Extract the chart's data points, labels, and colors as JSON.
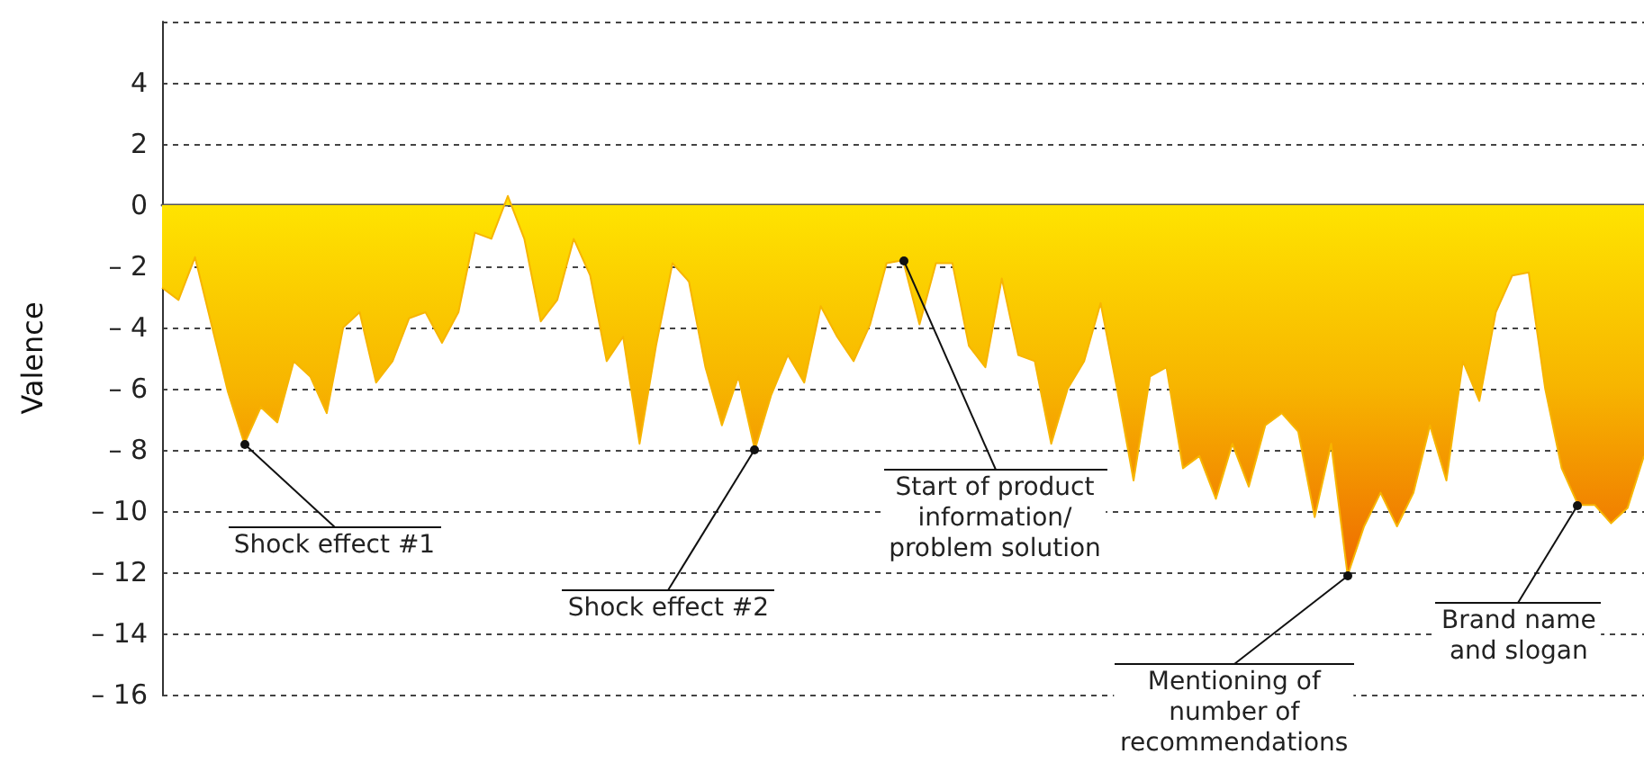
{
  "chart_data": {
    "type": "area",
    "ylabel": "Valence",
    "categories": [
      null,
      null,
      null,
      null,
      null,
      null,
      null,
      null,
      null,
      null,
      null,
      null,
      null,
      null,
      null,
      null,
      null,
      null,
      null,
      null,
      null,
      null,
      null,
      null,
      null,
      null,
      null,
      null,
      null,
      null,
      null,
      null,
      null,
      null,
      null,
      null,
      null,
      null,
      null,
      null,
      null,
      null,
      null,
      null,
      null,
      null,
      null,
      null,
      null,
      null,
      null,
      null,
      null,
      null,
      null,
      null,
      null,
      null,
      null,
      null,
      null,
      null,
      null,
      null,
      null,
      null,
      null,
      null,
      null,
      null,
      null,
      null,
      null,
      null,
      null,
      null,
      null,
      null,
      null,
      null,
      null,
      null,
      null,
      null,
      null,
      null,
      null,
      null,
      null,
      null,
      null
    ],
    "ylim": [
      -16,
      6
    ],
    "yticks": [
      {
        "value": 6,
        "label": null
      },
      4,
      2,
      0,
      {
        "value": -2,
        "label": "– 2"
      },
      {
        "value": -4,
        "label": "– 4"
      },
      {
        "value": -6,
        "label": "– 6"
      },
      {
        "value": -8,
        "label": "– 8"
      },
      {
        "value": -10,
        "label": "– 10"
      },
      {
        "value": -12,
        "label": "– 12"
      },
      {
        "value": -14,
        "label": "– 14"
      },
      {
        "value": -16,
        "label": "– 16"
      }
    ],
    "tick_labels": "y",
    "grid": "y",
    "marker": "none",
    "series": [
      {
        "color": "#f7b500",
        "values": [
          -2.7,
          -3.1,
          -1.7,
          -3.9,
          -6.1,
          -7.8,
          -6.6,
          -7.1,
          -5.1,
          -5.6,
          -6.8,
          -4.0,
          -3.5,
          -5.8,
          -5.1,
          -3.7,
          -3.5,
          -4.5,
          -3.5,
          -0.9,
          -1.1,
          0.3,
          -1.1,
          -3.8,
          -3.1,
          -1.1,
          -2.3,
          -5.1,
          -4.3,
          -7.8,
          -4.6,
          -1.9,
          -2.5,
          -5.3,
          -7.2,
          -5.6,
          -8.0,
          -6.2,
          -4.9,
          -5.8,
          -3.3,
          -4.3,
          -5.1,
          -3.9,
          -1.9,
          -1.8,
          -3.9,
          -1.9,
          -1.9,
          -4.6,
          -5.3,
          -2.4,
          -4.9,
          -5.1,
          -7.8,
          -6.0,
          -5.1,
          -3.2,
          -6.0,
          -9.0,
          -5.6,
          -5.3,
          -8.6,
          -8.2,
          -9.6,
          -7.8,
          -9.2,
          -7.2,
          -6.8,
          -7.4,
          -10.2,
          -7.8,
          -12.1,
          -10.5,
          -9.4,
          -10.5,
          -9.4,
          -7.2,
          -9.0,
          -5.1,
          -6.4,
          -3.5,
          -2.3,
          -2.2,
          -6.0,
          -8.6,
          -9.8,
          -9.8,
          -10.4,
          -9.9,
          -8.2
        ]
      }
    ],
    "annotations": [
      "Shock effect #1",
      "Shock effect #2",
      "Start of product\ninformation/\nproblem solution",
      "Mentioning of\nnumber of\nrecommendations",
      "Brand name\nand slogan"
    ]
  }
}
